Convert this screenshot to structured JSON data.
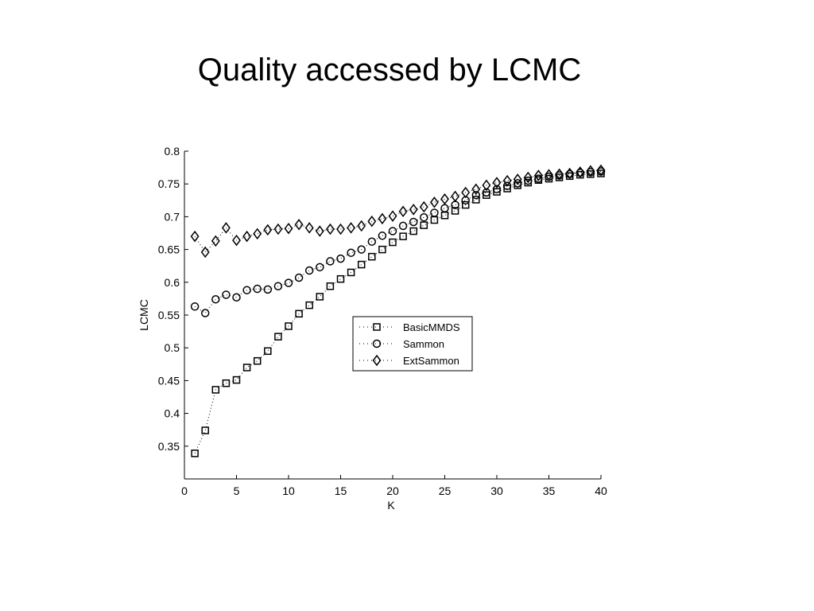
{
  "slide": {
    "title": "Quality accessed by LCMC"
  },
  "chart_data": {
    "type": "scatter",
    "title": "",
    "xlabel": "K",
    "ylabel": "LCMC",
    "xlim": [
      0,
      40
    ],
    "ylim": [
      0.3,
      0.8
    ],
    "xticks": [
      0,
      5,
      10,
      15,
      20,
      25,
      30,
      35,
      40
    ],
    "yticks": [
      0.35,
      0.4,
      0.45,
      0.5,
      0.55,
      0.6,
      0.65,
      0.7,
      0.75,
      0.8
    ],
    "grid": false,
    "legend_position": "center-right",
    "x": [
      1,
      2,
      3,
      4,
      5,
      6,
      7,
      8,
      9,
      10,
      11,
      12,
      13,
      14,
      15,
      16,
      17,
      18,
      19,
      20,
      21,
      22,
      23,
      24,
      25,
      26,
      27,
      28,
      29,
      30,
      31,
      32,
      33,
      34,
      35,
      36,
      37,
      38,
      39,
      40
    ],
    "series": [
      {
        "name": "BasicMMDS",
        "marker": "square",
        "line": "dotted",
        "values": [
          0.339,
          0.374,
          0.436,
          0.446,
          0.451,
          0.47,
          0.48,
          0.495,
          0.517,
          0.533,
          0.552,
          0.565,
          0.578,
          0.594,
          0.605,
          0.615,
          0.627,
          0.639,
          0.65,
          0.661,
          0.67,
          0.678,
          0.687,
          0.695,
          0.702,
          0.709,
          0.718,
          0.726,
          0.733,
          0.738,
          0.743,
          0.748,
          0.752,
          0.756,
          0.758,
          0.76,
          0.762,
          0.764,
          0.765,
          0.766
        ]
      },
      {
        "name": "Sammon",
        "marker": "circle",
        "line": "dotted",
        "values": [
          0.563,
          0.553,
          0.574,
          0.581,
          0.577,
          0.588,
          0.59,
          0.589,
          0.594,
          0.599,
          0.607,
          0.618,
          0.623,
          0.632,
          0.636,
          0.645,
          0.65,
          0.662,
          0.671,
          0.678,
          0.686,
          0.692,
          0.699,
          0.706,
          0.713,
          0.718,
          0.725,
          0.733,
          0.737,
          0.742,
          0.747,
          0.751,
          0.755,
          0.758,
          0.761,
          0.763,
          0.765,
          0.767,
          0.768,
          0.769
        ]
      },
      {
        "name": "ExtSammon",
        "marker": "diamond",
        "line": "dotted",
        "values": [
          0.67,
          0.646,
          0.663,
          0.683,
          0.664,
          0.67,
          0.674,
          0.68,
          0.681,
          0.682,
          0.688,
          0.683,
          0.678,
          0.681,
          0.681,
          0.683,
          0.686,
          0.693,
          0.697,
          0.701,
          0.708,
          0.711,
          0.715,
          0.722,
          0.727,
          0.731,
          0.737,
          0.742,
          0.748,
          0.752,
          0.755,
          0.757,
          0.76,
          0.763,
          0.764,
          0.765,
          0.766,
          0.768,
          0.77,
          0.771
        ]
      }
    ]
  }
}
